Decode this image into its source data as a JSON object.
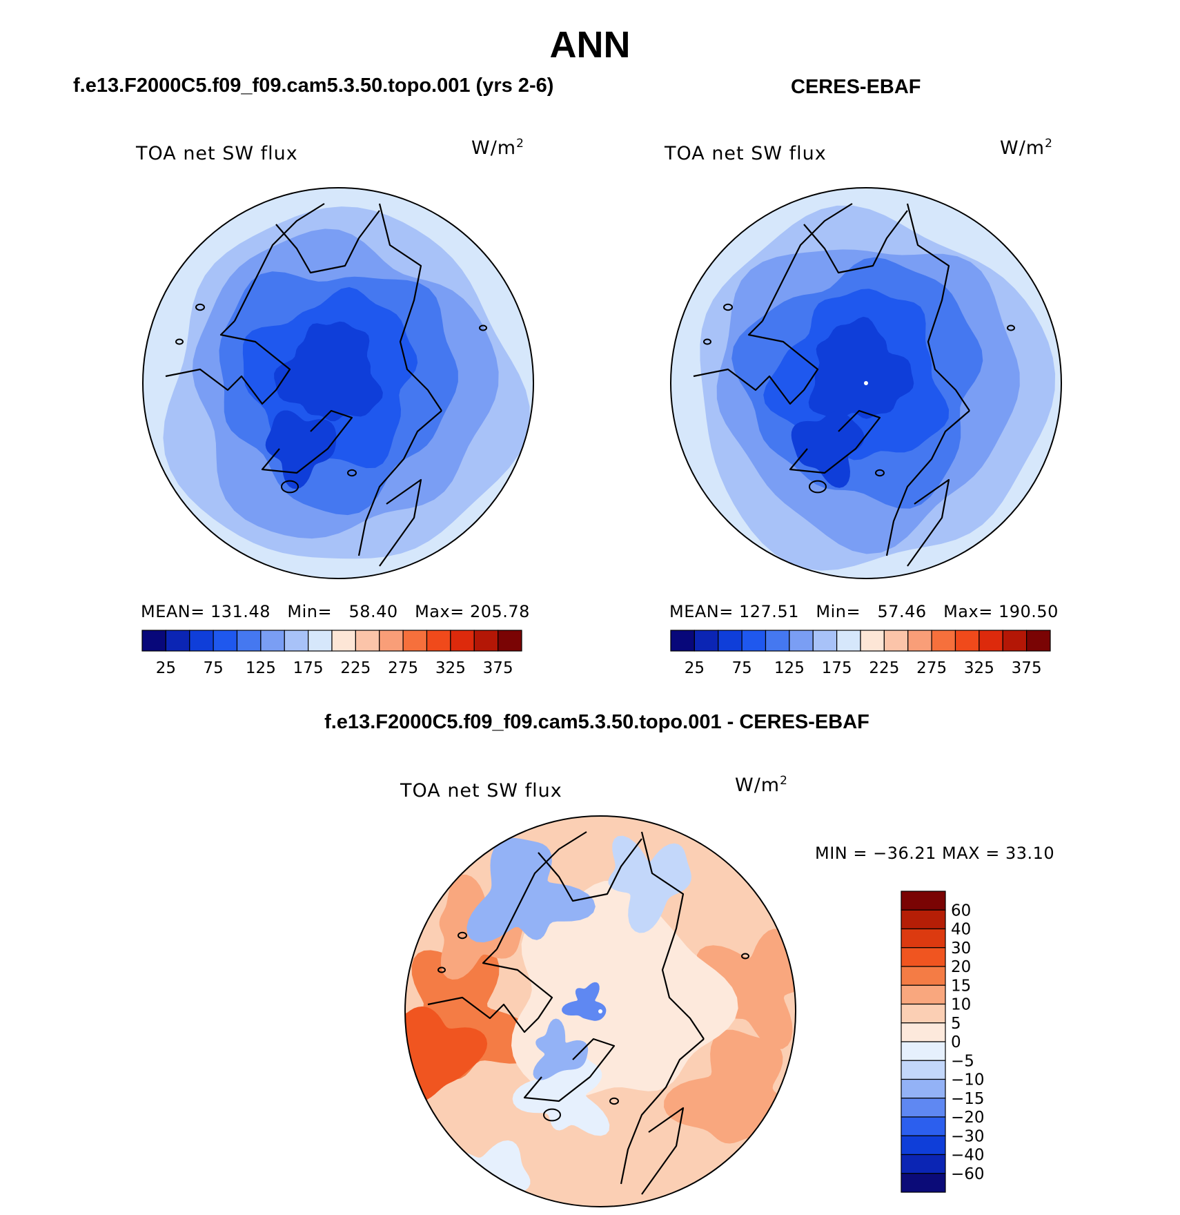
{
  "figure": {
    "main_title": "ANN",
    "panel_a_subtitle": "f.e13.F2000C5.f09_f09.cam5.3.50.topo.001 (yrs 2-6)",
    "panel_b_subtitle": "CERES-EBAF",
    "panel_c_subtitle": "f.e13.F2000C5.f09_f09.cam5.3.50.topo.001 - CERES-EBAF"
  },
  "colors": {
    "abs_scale": [
      "#08087a",
      "#0b25b4",
      "#0f3ed9",
      "#1f58ee",
      "#4578f0",
      "#7a9ef4",
      "#a8c2f8",
      "#d6e7fb",
      "#fde6d6",
      "#fbc4a9",
      "#f99e78",
      "#f6703c",
      "#f04a1b",
      "#dd2a0c",
      "#b41706",
      "#7a0404"
    ],
    "diff_scale": [
      "#0b0b78",
      "#0b25b4",
      "#0f3ed9",
      "#2c5fee",
      "#5f88f2",
      "#93b2f6",
      "#c3d7fa",
      "#e6f0fd",
      "#fde9dc",
      "#fbcfb4",
      "#f9a77e",
      "#f47c45",
      "#f05520",
      "#dc3a10",
      "#b51e06",
      "#7a0404"
    ],
    "coastline": "#000000"
  },
  "chart_data": [
    {
      "type": "heatmap",
      "panel": "model",
      "title": "TOA net SW flux",
      "units": "W/m",
      "units_superscript": "2",
      "projection": "north polar stereographic",
      "stats": {
        "mean_label": "MEAN=",
        "mean": "131.48",
        "min_label": "Min=",
        "min": "58.40",
        "max_label": "Max=",
        "max": "205.78"
      },
      "colorbar": {
        "orientation": "horizontal",
        "levels": [
          25,
          50,
          75,
          100,
          125,
          150,
          175,
          200,
          225,
          250,
          275,
          300,
          325,
          350,
          375
        ],
        "tick_labels": [
          "25",
          "75",
          "125",
          "175",
          "225",
          "275",
          "325",
          "375"
        ]
      },
      "field_bands": [
        58.4,
        75,
        100,
        125,
        150,
        175,
        205.78
      ]
    },
    {
      "type": "heatmap",
      "panel": "obs",
      "title": "TOA net SW flux",
      "units": "W/m",
      "units_superscript": "2",
      "projection": "north polar stereographic",
      "stats": {
        "mean_label": "MEAN=",
        "mean": "127.51",
        "min_label": "Min=",
        "min": "57.46",
        "max_label": "Max=",
        "max": "190.50"
      },
      "colorbar": {
        "orientation": "horizontal",
        "levels": [
          25,
          50,
          75,
          100,
          125,
          150,
          175,
          200,
          225,
          250,
          275,
          300,
          325,
          350,
          375
        ],
        "tick_labels": [
          "25",
          "75",
          "125",
          "175",
          "225",
          "275",
          "325",
          "375"
        ]
      },
      "field_bands": [
        57.46,
        75,
        100,
        125,
        150,
        175,
        190.5
      ]
    },
    {
      "type": "heatmap",
      "panel": "difference",
      "title": "TOA net SW flux",
      "units": "W/m",
      "units_superscript": "2",
      "projection": "north polar stereographic",
      "stats": {
        "text": "MIN = −36.21 MAX =   33.10",
        "min": -36.21,
        "max": 33.1
      },
      "colorbar": {
        "orientation": "vertical",
        "tick_labels": [
          "60",
          "40",
          "30",
          "20",
          "15",
          "10",
          "5",
          "0",
          "−5",
          "−10",
          "−15",
          "−20",
          "−30",
          "−40",
          "−60"
        ]
      }
    }
  ]
}
